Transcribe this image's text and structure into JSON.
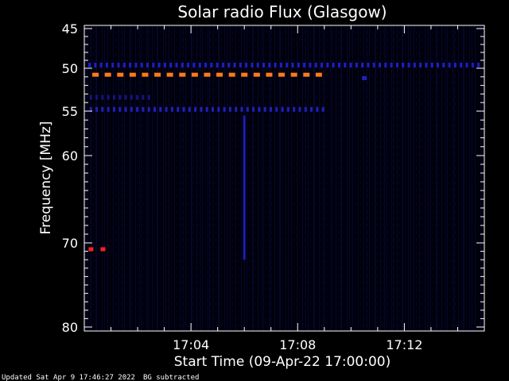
{
  "chart_data": {
    "type": "heatmap",
    "title": "Solar radio Flux (Glasgow)",
    "xlabel": "Start Time (09-Apr-22 17:00:00)",
    "ylabel": "Frequency [MHz]",
    "x_unit": "minutes",
    "xlim": [
      0,
      15
    ],
    "ylim": [
      45,
      80
    ],
    "y_inverted": true,
    "x_ticks": [
      {
        "value": 4,
        "label": "17:04"
      },
      {
        "value": 8,
        "label": "17:08"
      },
      {
        "value": 12,
        "label": "17:12"
      }
    ],
    "y_ticks": [
      {
        "value": 45,
        "label": "45"
      },
      {
        "value": 50,
        "label": "50"
      },
      {
        "value": 55,
        "label": "55"
      },
      {
        "value": 60,
        "label": "60"
      },
      {
        "value": 70,
        "label": "70"
      },
      {
        "value": 80,
        "label": "80"
      }
    ],
    "background_color": "#000010",
    "axis_color": "#ffffff",
    "features": [
      {
        "kind": "band",
        "freq": 49.5,
        "x_start": 0.15,
        "x_end": 15,
        "intensity": "low",
        "color": "#1e1ec8"
      },
      {
        "kind": "band",
        "freq": 50.8,
        "x_start": 0.3,
        "x_end": 9.0,
        "intensity": "high",
        "color": "#ff7a18"
      },
      {
        "kind": "band",
        "freq": 53.3,
        "x_start": 0.2,
        "x_end": 2.5,
        "intensity": "low",
        "color": "#151580"
      },
      {
        "kind": "band",
        "freq": 54.7,
        "x_start": 0.2,
        "x_end": 9.0,
        "intensity": "low",
        "color": "#2020c0"
      },
      {
        "kind": "burst",
        "x": 6.0,
        "freq_start": 55.5,
        "freq_end": 72.0,
        "intensity": "low",
        "color": "#1818a0"
      },
      {
        "kind": "spot",
        "x": 0.25,
        "freq": 70.8,
        "intensity": "high",
        "color": "#ff2020"
      },
      {
        "kind": "spot",
        "x": 0.7,
        "freq": 70.8,
        "intensity": "high",
        "color": "#ff2020"
      },
      {
        "kind": "spot",
        "x": 10.5,
        "freq": 51.2,
        "intensity": "low",
        "color": "#2020c0"
      }
    ]
  },
  "footer": {
    "updated": "Updated Sat Apr  9 17:46:27 2022",
    "note": "BG subtracted"
  }
}
